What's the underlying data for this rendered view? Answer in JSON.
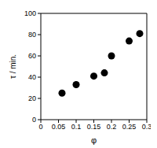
{
  "chart_data": {
    "type": "scatter",
    "x_label": "φ",
    "y_label": "τ / min.",
    "x": [
      0.06,
      0.1,
      0.15,
      0.18,
      0.2,
      0.25,
      0.28
    ],
    "values": [
      25,
      33,
      41,
      44,
      60,
      74,
      81
    ],
    "xlim": [
      0,
      0.3
    ],
    "xticks": [
      0,
      0.05,
      0.1,
      0.15,
      0.2,
      0.25,
      0.3
    ],
    "ylim": [
      0,
      100
    ],
    "yticks": [
      0,
      20,
      40,
      60,
      80,
      100
    ],
    "color": "#000000",
    "marker": "circle"
  }
}
